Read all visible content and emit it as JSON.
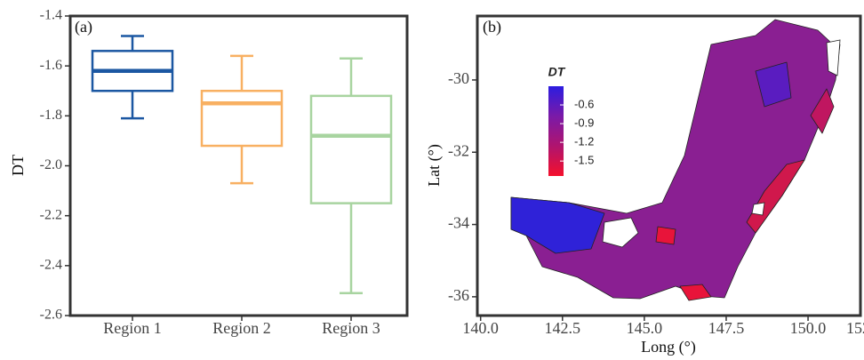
{
  "chart_data": [
    {
      "type": "box",
      "label": "(a)",
      "ylabel": "DT",
      "categories": [
        "Region 1",
        "Region 2",
        "Region 3"
      ],
      "colors": [
        "#1b57a2",
        "#f8b062",
        "#a8d4a0"
      ],
      "whisker_high": [
        -1.48,
        -1.56,
        -1.57
      ],
      "q3": [
        -1.54,
        -1.7,
        -1.72
      ],
      "median": [
        -1.62,
        -1.75,
        -1.88
      ],
      "q1": [
        -1.7,
        -1.92,
        -2.15
      ],
      "whisker_low": [
        -1.81,
        -2.07,
        -2.51
      ],
      "ylim": [
        -2.6,
        -1.4
      ],
      "yticks": [
        -2.6,
        -2.4,
        -2.2,
        {
          "value": -2,
          "label": "-2.0"
        },
        -1.8,
        -1.6,
        -1.4
      ]
    },
    {
      "type": "map",
      "label": "(b)",
      "xlabel": "Long (°)",
      "ylabel": "Lat (°)",
      "xlim": [
        139.9,
        151.6
      ],
      "ylim": [
        -36.52,
        -28.23
      ],
      "xticks": [
        {
          "value": 140,
          "label": "140.0"
        },
        142.5,
        {
          "value": 145,
          "label": "145.0"
        },
        147.5,
        {
          "value": 150,
          "label": "150.0"
        },
        {
          "value": 152.5,
          "label": "152"
        }
      ],
      "yticks": [
        -36,
        -34,
        -32,
        -30
      ],
      "colorbar": {
        "title": "DT",
        "lim": [
          -1.74,
          -0.3
        ],
        "ticks": [
          -0.6,
          -0.9,
          -1.2,
          -1.5
        ],
        "colors": [
          "#f4102c",
          "#b0146e",
          "#7a1aa8",
          "#2c1ce0"
        ]
      }
    }
  ]
}
